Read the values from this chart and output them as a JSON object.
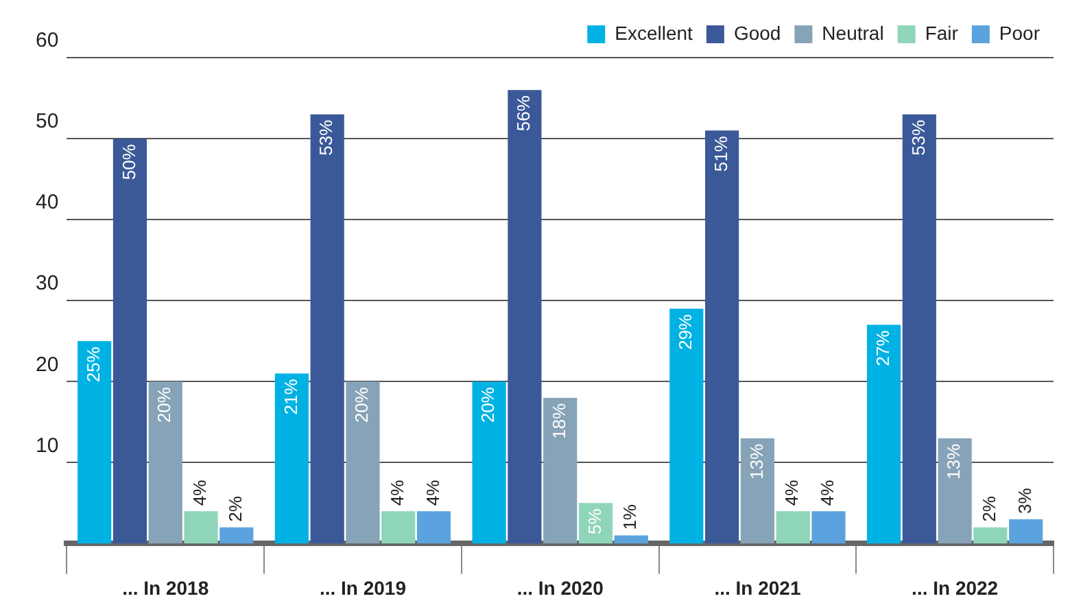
{
  "chart_data": {
    "type": "bar",
    "categories": [
      "... In 2018",
      "... In 2019",
      "... In 2020",
      "... In 2021",
      "... In 2022"
    ],
    "series": [
      {
        "name": "Excellent",
        "color": "#00b2e3",
        "values": [
          25,
          21,
          20,
          29,
          27
        ],
        "value_labels": [
          "25%",
          "21%",
          "20%",
          "29%",
          "27%"
        ]
      },
      {
        "name": "Good",
        "color": "#3b5998",
        "values": [
          50,
          53,
          56,
          51,
          53
        ],
        "value_labels": [
          "50%",
          "53%",
          "56%",
          "51%",
          "53%"
        ]
      },
      {
        "name": "Neutral",
        "color": "#86a3b8",
        "values": [
          20,
          20,
          18,
          13,
          13
        ],
        "value_labels": [
          "20%",
          "20%",
          "18%",
          "13%",
          "13%"
        ]
      },
      {
        "name": "Fair",
        "color": "#8fd5b9",
        "values": [
          4,
          4,
          5,
          4,
          2
        ],
        "value_labels": [
          "4%",
          "4%",
          "5%",
          "4%",
          "2%"
        ]
      },
      {
        "name": "Poor",
        "color": "#5ba3de",
        "values": [
          2,
          4,
          1,
          4,
          3
        ],
        "value_labels": [
          "2%",
          "4%",
          "1%",
          "4%",
          "3%"
        ]
      }
    ],
    "ylim": [
      0,
      60
    ],
    "yticks": [
      10,
      20,
      30,
      40,
      50,
      60
    ],
    "grid": "y",
    "legend": "top right"
  }
}
